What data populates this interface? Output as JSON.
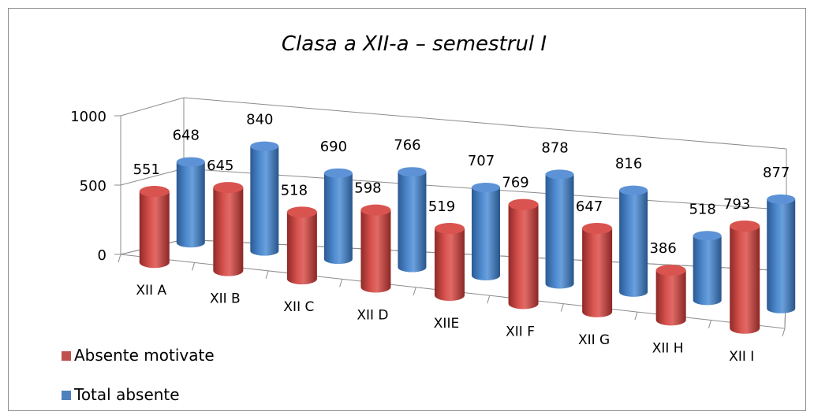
{
  "chart_data": {
    "type": "bar",
    "title": "Clasa a XII-a – semestrul I",
    "categories": [
      "XII A",
      "XII B",
      "XII C",
      "XII D",
      "XIIE",
      "XII F",
      "XII G",
      "XII H",
      "XII I"
    ],
    "series": [
      {
        "name": "Absente motivate",
        "values": [
          551,
          645,
          518,
          598,
          519,
          769,
          647,
          386,
          793
        ],
        "color": "#c0504d"
      },
      {
        "name": "Total absente",
        "values": [
          648,
          840,
          690,
          766,
          707,
          878,
          816,
          518,
          877
        ],
        "color": "#4f81bd"
      }
    ],
    "y_ticks": [
      "0",
      "500",
      "1000"
    ],
    "ylim": [
      0,
      1000
    ],
    "legend_position": "bottom-left",
    "style": "3d-cylinder"
  }
}
